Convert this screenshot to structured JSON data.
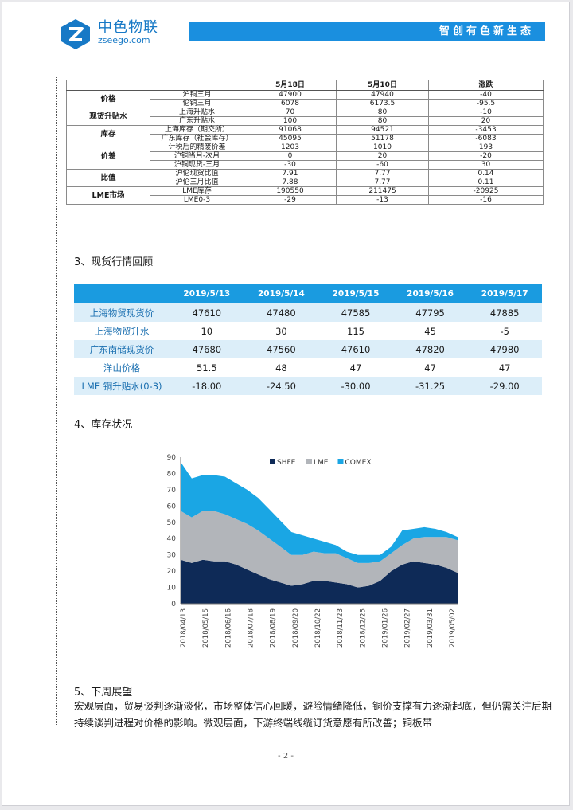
{
  "header": {
    "logo_name": "中色物联",
    "logo_url": "zseego.com",
    "slogan": "智创有色新生态"
  },
  "table1": {
    "columns": [
      "",
      "",
      "5月18日",
      "5月10日",
      "涨跌"
    ],
    "groups": [
      {
        "label": "价格",
        "rows": [
          [
            "沪铜三月",
            "47900",
            "47940",
            "-40"
          ],
          [
            "伦铜三月",
            "6078",
            "6173.5",
            "-95.5"
          ]
        ]
      },
      {
        "label": "现货升贴水",
        "rows": [
          [
            "上海升贴水",
            "70",
            "80",
            "-10"
          ],
          [
            "广东升贴水",
            "100",
            "80",
            "20"
          ]
        ]
      },
      {
        "label": "库存",
        "rows": [
          [
            "上海库存（期交所）",
            "91068",
            "94521",
            "-3453"
          ],
          [
            "广东库存（社会库存）",
            "45095",
            "51178",
            "-6083"
          ]
        ]
      },
      {
        "label": "价差",
        "rows": [
          [
            "计税后的精废价差",
            "1203",
            "1010",
            "193"
          ],
          [
            "沪铜当月-次月",
            "0",
            "20",
            "-20"
          ],
          [
            "沪铜现货-三月",
            "-30",
            "-60",
            "30"
          ]
        ]
      },
      {
        "label": "比值",
        "rows": [
          [
            "沪伦现货比值",
            "7.91",
            "7.77",
            "0.14"
          ],
          [
            "沪伦三月比值",
            "7.88",
            "7.77",
            "0.11"
          ]
        ]
      },
      {
        "label": "LME市场",
        "rows": [
          [
            "LME库存",
            "190550",
            "211475",
            "-20925"
          ],
          [
            "LME0-3",
            "-29",
            "-13",
            "-16"
          ]
        ]
      }
    ]
  },
  "section3": "3、现货行情回顾",
  "table2": {
    "columns": [
      "",
      "2019/5/13",
      "2019/5/14",
      "2019/5/15",
      "2019/5/16",
      "2019/5/17"
    ],
    "rows": [
      [
        "上海物贸现货价",
        "47610",
        "47480",
        "47585",
        "47795",
        "47885"
      ],
      [
        "上海物贸升水",
        "10",
        "30",
        "115",
        "45",
        "-5"
      ],
      [
        "广东南储现货价",
        "47680",
        "47560",
        "47610",
        "47820",
        "47980"
      ],
      [
        "洋山价格",
        "51.5",
        "48",
        "47",
        "47",
        "47"
      ],
      [
        "LME 铜升贴水(0-3)",
        "-18.00",
        "-24.50",
        "-30.00",
        "-31.25",
        "-29.00"
      ]
    ]
  },
  "section4": "4、库存状况",
  "chart_data": {
    "type": "area",
    "stacked": true,
    "legend": [
      "SHFE",
      "LME",
      "COMEX"
    ],
    "legend_position": "top-right",
    "colors": {
      "SHFE": "#0e2a57",
      "LME": "#b2b5ba",
      "COMEX": "#1aa6e4"
    },
    "ylim": [
      0,
      90
    ],
    "yticks": [
      0,
      10,
      20,
      30,
      40,
      50,
      60,
      70,
      80,
      90
    ],
    "xticks": [
      "2018/04/13",
      "2018/05/15",
      "2018/06/16",
      "2018/07/18",
      "2018/08/19",
      "2018/09/20",
      "2018/10/22",
      "2018/11/23",
      "2018/12/25",
      "2019/01/26",
      "2019/02/27",
      "2019/03/31",
      "2019/05/02"
    ],
    "x": [
      "2018/04/13",
      "2018/04/29",
      "2018/05/15",
      "2018/05/31",
      "2018/06/16",
      "2018/07/02",
      "2018/07/18",
      "2018/08/03",
      "2018/08/19",
      "2018/09/04",
      "2018/09/20",
      "2018/10/06",
      "2018/10/22",
      "2018/11/07",
      "2018/11/23",
      "2018/12/09",
      "2018/12/25",
      "2019/01/10",
      "2019/01/26",
      "2019/02/11",
      "2019/02/27",
      "2019/03/15",
      "2019/03/31",
      "2019/04/16",
      "2019/05/02",
      "2019/05/17"
    ],
    "series": [
      {
        "name": "SHFE",
        "values": [
          27,
          25,
          27,
          26,
          26,
          24,
          21,
          18,
          15,
          13,
          11,
          12,
          14,
          14,
          13,
          12,
          10,
          11,
          14,
          20,
          24,
          26,
          25,
          24,
          22,
          19
        ]
      },
      {
        "name": "LME",
        "values": [
          30,
          28,
          30,
          31,
          29,
          28,
          28,
          27,
          25,
          22,
          19,
          18,
          18,
          17,
          18,
          16,
          15,
          14,
          12,
          11,
          12,
          14,
          16,
          17,
          19,
          20
        ]
      },
      {
        "name": "COMEX",
        "values": [
          30,
          24,
          22,
          22,
          23,
          22,
          21,
          20,
          18,
          16,
          14,
          12,
          8,
          7,
          5,
          4,
          5,
          5,
          4,
          4,
          9,
          6,
          6,
          5,
          3,
          2
        ]
      }
    ]
  },
  "section5": "5、下周展望",
  "para": "宏观层面，贸易谈判逐渐淡化，市场整体信心回暖，避险情绪降低，铜价支撑有力逐渐起底，但仍需关注后期持续谈判进程对价格的影响。微观层面，下游终端线缆订货意愿有所改善；铜板带",
  "page_number": "- 2 -"
}
